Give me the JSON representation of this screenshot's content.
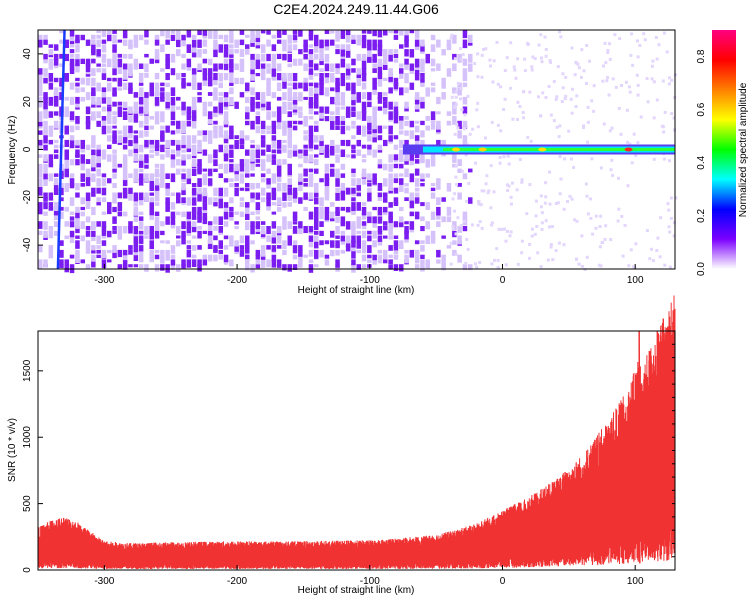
{
  "title": "C2E4.2024.249.11.44.G06",
  "chart_data": [
    {
      "type": "heatmap",
      "xlabel": "Height of straight line (km)",
      "ylabel": "Frequency (Hz)",
      "xlim": [
        -350,
        130
      ],
      "ylim": [
        -50,
        50
      ],
      "xticks": [
        -300,
        -200,
        -100,
        0,
        100
      ],
      "yticks": [
        -40,
        -20,
        0,
        20,
        40
      ],
      "colorbar": {
        "label": "Normalized spectral amplitude",
        "range": [
          0.0,
          0.9
        ],
        "ticks": [
          "0.0",
          "0.2",
          "0.4",
          "0.6",
          "0.8"
        ],
        "colors": [
          "#ffffff",
          "#7b00ff",
          "#0000ff",
          "#00ffff",
          "#00ff00",
          "#ffff00",
          "#ff8000",
          "#ff0000",
          "#ff0080"
        ]
      },
      "features": {
        "noise_region_x": [
          -350,
          -40
        ],
        "carrier_line_freq": 0,
        "carrier_line_x": [
          -75,
          130
        ],
        "slanted_line": {
          "x": [
            -330,
            -335
          ],
          "y": [
            50,
            -50
          ]
        }
      }
    },
    {
      "type": "line",
      "xlabel": "Height of straight line (km)",
      "ylabel": "SNR (10 * v/v)",
      "xlim": [
        -350,
        130
      ],
      "ylim": [
        0,
        1800
      ],
      "xticks": [
        -300,
        -200,
        -100,
        0,
        100
      ],
      "yticks": [
        0,
        500,
        1000,
        1500
      ],
      "color": "#f03232",
      "series": [
        {
          "x": [
            -350,
            -340,
            -330,
            -320,
            -300,
            -280,
            -250,
            -200,
            -150,
            -100,
            -60,
            -40,
            -20,
            0,
            20,
            40,
            60,
            80,
            95,
            100,
            103,
            105,
            110,
            120,
            130
          ],
          "y": [
            220,
            260,
            280,
            250,
            150,
            140,
            145,
            150,
            150,
            155,
            175,
            200,
            240,
            310,
            380,
            470,
            600,
            780,
            950,
            1050,
            1150,
            1000,
            1150,
            1300,
            1450
          ]
        }
      ]
    }
  ]
}
